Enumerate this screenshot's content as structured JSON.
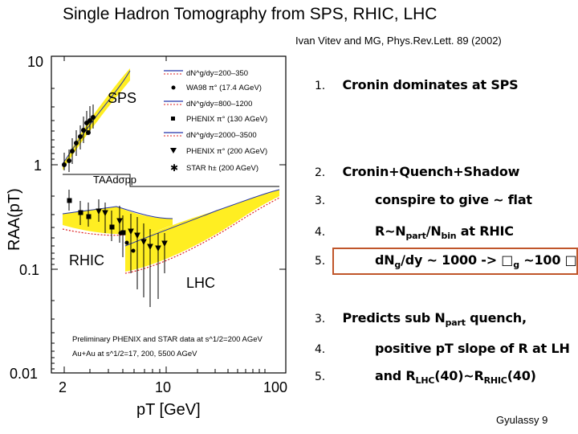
{
  "header": {
    "title": "Single Hadron Tomography from SPS, RHIC, LHC",
    "reference": "Ivan Vitev and MG, Phys.Rev.Lett. 89 (2002)"
  },
  "plot": {
    "y_ticks": [
      "10",
      "1",
      "0.1",
      "0.01"
    ],
    "x_ticks": [
      "2",
      "10",
      "100"
    ],
    "y_label": "RAA(pT)",
    "x_label": "pT [GeV]",
    "region_sps": "SPS",
    "region_rhic": "RHIC",
    "region_lhc": "LHC",
    "taa_label": "TAAdσpp",
    "legend": [
      "dN^g/dy=200–350",
      "WA98 π° (17.4 AGeV)",
      "dN^g/dy=800–1200",
      "PHENIX π° (130 AGeV)",
      "dN^g/dy=2000–3500",
      "PHENIX π° (200 AGeV)",
      "STAR h± (200 AGeV)"
    ],
    "note_line1": "Preliminary PHENIX and STAR data at s^1/2=200 AGeV",
    "note_line2": "Au+Au at s^1/2=17, 200, 5500 AGeV"
  },
  "bullets": [
    {
      "num": "1.",
      "text": "Cronin dominates at SPS"
    },
    {
      "num": "2.",
      "text": "Cronin+Quench+Shadow"
    },
    {
      "num": "3.",
      "text": "conspire to give ~ flat"
    },
    {
      "num": "4.",
      "pre": "R~N",
      "s1": "part",
      "mid": "/N",
      "s2": "bin",
      "post": " at RHIC"
    },
    {
      "num": "5.",
      "pre": "dN",
      "s1": "g",
      "mid": "/dy ~ 1000 -> □",
      "s2": "g",
      "post": " ~100 □"
    },
    {
      "num": "3.",
      "pre": "Predicts sub  N",
      "s1": "part",
      "post": " quench,"
    },
    {
      "num": "4.",
      "text": "positive pT slope of R at LH"
    },
    {
      "num": "5.",
      "pre": "and R",
      "s1": "LHC",
      "mid": "(40)~R",
      "s2": "RHIC",
      "post": "(40)"
    }
  ],
  "footer": "Gyulassy 9"
}
